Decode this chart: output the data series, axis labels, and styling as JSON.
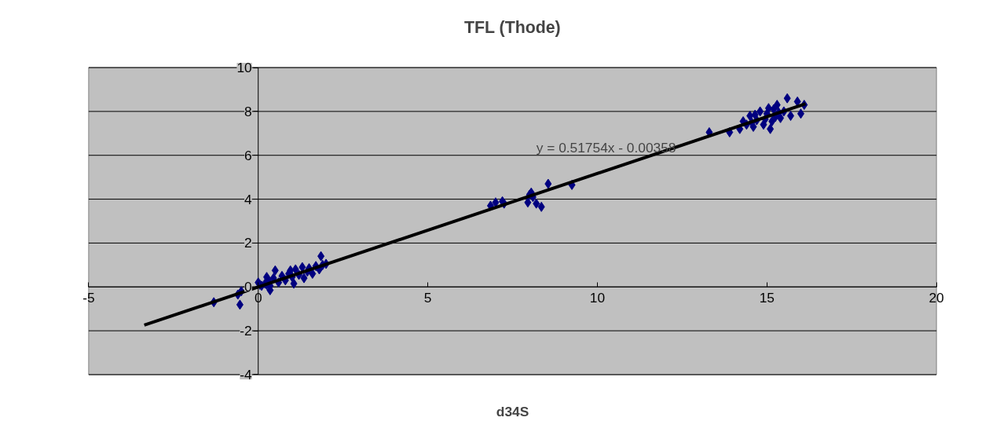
{
  "chart_data": {
    "type": "scatter",
    "title": "TFL (Thode)",
    "xlabel": "d34S",
    "xlim": [
      -5,
      20
    ],
    "ylim": [
      -4,
      10
    ],
    "xticks": [
      -5,
      0,
      5,
      10,
      15,
      20
    ],
    "yticks": [
      -4,
      -2,
      0,
      2,
      4,
      6,
      8,
      10
    ],
    "grid": "y",
    "annotations": [
      "y = 0.51754x - 0.00358"
    ],
    "series": [
      {
        "marker": "diamond",
        "color": "#000080",
        "x": [
          -1.31,
          -0.54,
          -0.5,
          0.1,
          -0.6,
          0.0,
          0.25,
          0.05,
          0.35,
          0.2,
          0.25,
          0.3,
          0.35,
          0.45,
          0.5,
          0.6,
          0.7,
          0.8,
          0.9,
          0.95,
          1.0,
          1.05,
          1.1,
          1.2,
          1.3,
          1.35,
          1.45,
          1.5,
          1.6,
          1.7,
          1.8,
          1.85,
          1.9,
          2.0,
          6.85,
          7.0,
          7.2,
          7.25,
          7.95,
          8.0,
          8.05,
          8.1,
          8.2,
          8.35,
          8.55,
          9.25,
          13.3,
          13.9,
          14.2,
          14.3,
          14.5,
          14.6,
          14.7,
          14.8,
          14.9,
          15.0,
          15.1,
          15.2,
          15.3,
          15.4,
          15.5,
          15.6,
          15.7,
          15.9,
          16.0,
          16.1,
          14.4,
          14.65,
          14.95,
          15.15,
          15.35,
          15.05,
          14.55,
          15.25
        ],
        "values": [
          -0.7,
          -0.81,
          -0.2,
          0.05,
          -0.35,
          0.2,
          0.1,
          0.1,
          -0.15,
          0.15,
          0.45,
          0.3,
          0.05,
          0.4,
          0.75,
          0.2,
          0.5,
          0.3,
          0.6,
          0.75,
          0.45,
          0.15,
          0.8,
          0.55,
          0.9,
          0.4,
          0.7,
          0.85,
          0.6,
          0.95,
          0.8,
          1.4,
          1.0,
          1.05,
          3.7,
          3.85,
          3.9,
          3.8,
          3.85,
          4.2,
          4.3,
          4.1,
          3.8,
          3.65,
          4.7,
          4.65,
          7.05,
          7.05,
          7.2,
          7.55,
          7.8,
          7.3,
          7.6,
          8.0,
          7.4,
          7.9,
          7.2,
          8.1,
          8.3,
          7.7,
          8.0,
          8.6,
          7.8,
          8.45,
          7.9,
          8.3,
          7.4,
          7.85,
          7.65,
          7.55,
          7.95,
          8.15,
          7.5,
          7.75
        ]
      },
      {
        "type": "line",
        "color": "#000000",
        "x": [
          -3.36,
          16.14
        ],
        "values": [
          -1.74,
          8.35
        ]
      }
    ]
  }
}
